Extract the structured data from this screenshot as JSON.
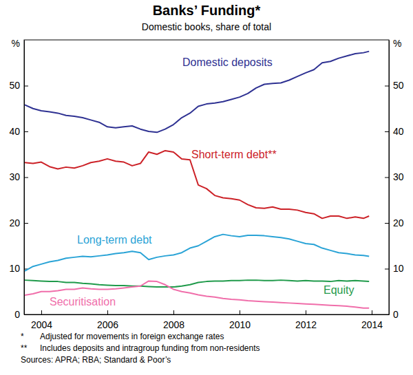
{
  "chart_data": {
    "type": "line",
    "title": "Banks’ Funding*",
    "subtitle": "Domestic books, share of total",
    "y_label": "%",
    "x": [
      2003.5,
      2003.75,
      2004,
      2004.25,
      2004.5,
      2004.75,
      2005,
      2005.25,
      2005.5,
      2005.75,
      2006,
      2006.25,
      2006.5,
      2006.75,
      2007,
      2007.25,
      2007.5,
      2007.75,
      2008,
      2008.25,
      2008.5,
      2008.75,
      2009,
      2009.25,
      2009.5,
      2009.75,
      2010,
      2010.25,
      2010.5,
      2010.75,
      2011,
      2011.25,
      2011.5,
      2011.75,
      2012,
      2012.25,
      2012.5,
      2012.75,
      2013,
      2013.25,
      2013.5,
      2013.75,
      2013.92
    ],
    "xlim": [
      2003.48,
      2014.52
    ],
    "xticks": [
      2004,
      2006,
      2008,
      2010,
      2012,
      2014
    ],
    "ylim": [
      0,
      60
    ],
    "yticks": [
      0,
      10,
      20,
      30,
      40,
      50
    ],
    "grid": false,
    "series": [
      {
        "name": "Domestic deposits",
        "color": "#2e3192",
        "values": [
          45.8,
          45,
          44.5,
          44.3,
          44,
          43.5,
          43.3,
          43,
          42.5,
          42,
          41,
          40.8,
          41,
          41.2,
          40.5,
          40,
          39.8,
          40.5,
          41.5,
          43,
          44,
          45.5,
          46,
          46.2,
          46.5,
          47,
          47.5,
          48.3,
          49.5,
          50.3,
          50.5,
          50.6,
          51.2,
          52,
          52.8,
          53.5,
          55,
          55.3,
          56,
          56.5,
          57,
          57.2,
          57.5
        ]
      },
      {
        "name": "Short-term debt**",
        "color": "#cc2127",
        "values": [
          33.2,
          33,
          33.3,
          32.3,
          31.8,
          32.2,
          32,
          32.5,
          33.2,
          33.5,
          34,
          33.5,
          33.3,
          32.5,
          33,
          35.5,
          35,
          35.8,
          35.5,
          34,
          33.8,
          28.3,
          27.5,
          26,
          25.5,
          25.3,
          25,
          24,
          23.3,
          23.2,
          23.5,
          23,
          23,
          22.8,
          22.3,
          22,
          21,
          21.5,
          21.5,
          21,
          21.3,
          21,
          21.5
        ]
      },
      {
        "name": "Long-term debt",
        "color": "#29a3d6",
        "values": [
          9.5,
          10.5,
          11,
          11.5,
          11.8,
          12.3,
          12.5,
          12.7,
          12.6,
          12.8,
          13,
          13.3,
          13.5,
          13.8,
          13.5,
          12,
          12.5,
          12.8,
          13,
          13.5,
          14.5,
          15,
          16,
          17,
          17.5,
          17.2,
          17,
          17.3,
          17.3,
          17.2,
          17,
          16.8,
          16.5,
          16,
          15.5,
          15.3,
          14.5,
          14,
          13.5,
          13.3,
          13,
          12.9,
          12.7
        ]
      },
      {
        "name": "Equity",
        "color": "#1f9a4a",
        "values": [
          7.5,
          7.4,
          7.3,
          7.2,
          7.2,
          7,
          7,
          6.8,
          6.7,
          6.5,
          6.4,
          6.3,
          6.3,
          6.2,
          6.2,
          6.1,
          6,
          6,
          6,
          6.2,
          6.5,
          7,
          7.2,
          7.3,
          7.3,
          7.4,
          7.4,
          7.5,
          7.5,
          7.4,
          7.4,
          7.5,
          7.4,
          7.3,
          7.4,
          7.3,
          7.3,
          7.2,
          7.4,
          7.3,
          7.4,
          7.3,
          7.2
        ]
      },
      {
        "name": "Securitisation",
        "color": "#f06eaa",
        "values": [
          4.2,
          4.5,
          5,
          5,
          5.2,
          5.5,
          5.5,
          5.8,
          5.6,
          5.5,
          5.5,
          5.6,
          5.8,
          6,
          6.2,
          7.3,
          7.2,
          6.5,
          5.5,
          5,
          4.7,
          4.3,
          4,
          3.8,
          3.5,
          3.3,
          3.2,
          3,
          2.9,
          2.8,
          2.7,
          2.6,
          2.5,
          2.4,
          2.3,
          2.2,
          2.1,
          2,
          1.9,
          1.8,
          1.6,
          1.4,
          1.4
        ]
      }
    ],
    "notes": [
      {
        "symbol": "*",
        "text": "Adjusted for movements in foreign exchange rates"
      },
      {
        "symbol": "**",
        "text": "Includes deposits and intragroup funding from non-residents"
      }
    ],
    "source": "Sources: APRA; RBA; Standard & Poor’s"
  }
}
